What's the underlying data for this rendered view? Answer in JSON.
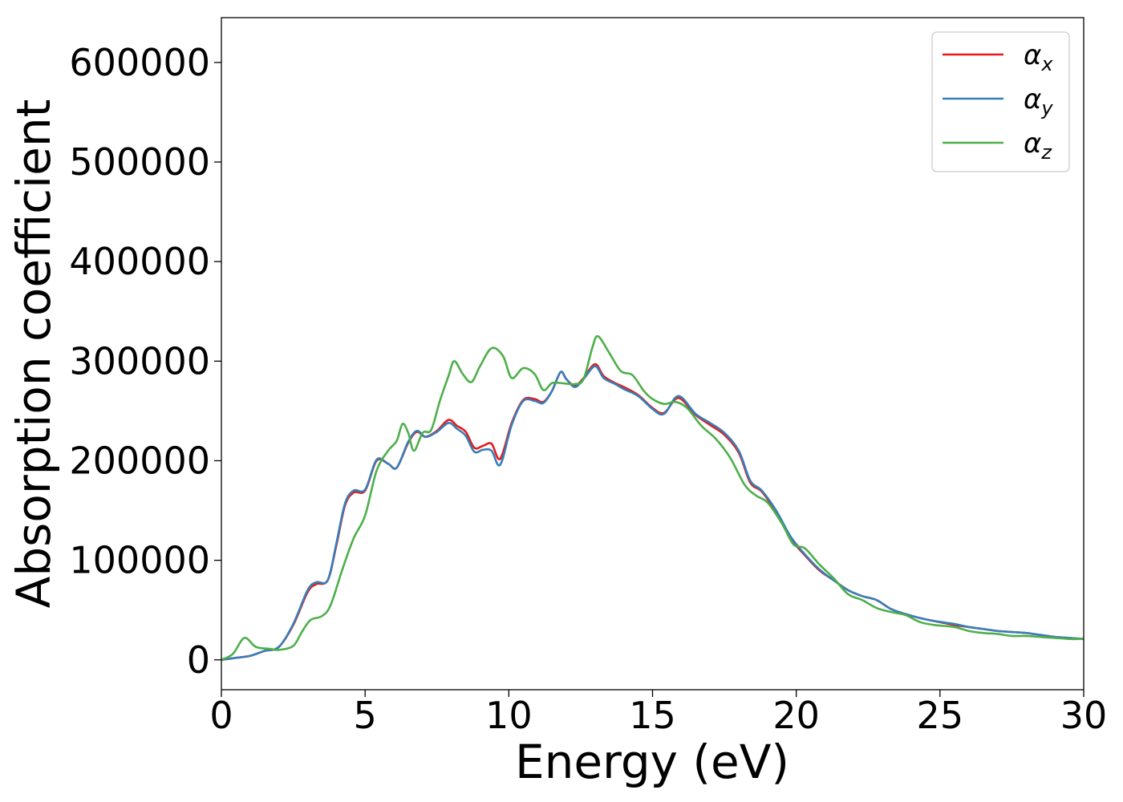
{
  "chart_data": {
    "type": "line",
    "xlabel": "Energy (eV)",
    "ylabel": "Absorption coefficient",
    "xlim": [
      0,
      30
    ],
    "ylim": [
      -30000,
      645000
    ],
    "grid": false,
    "legend_position": "top-right",
    "x_ticks": [
      "0",
      "5",
      "10",
      "15",
      "20",
      "25",
      "30"
    ],
    "y_ticks": [
      "0",
      "100000",
      "200000",
      "300000",
      "400000",
      "500000",
      "600000"
    ],
    "x_tick_values": [
      0,
      5,
      10,
      15,
      20,
      25,
      30
    ],
    "y_tick_values": [
      0,
      100000,
      200000,
      300000,
      400000,
      500000,
      600000
    ],
    "series": [
      {
        "name": "α_x",
        "symbol": "α",
        "subscript": "x",
        "color": "#e41a1c",
        "points": [
          [
            0,
            0
          ],
          [
            0.5,
            2000
          ],
          [
            1.0,
            4000
          ],
          [
            1.5,
            9000
          ],
          [
            2.0,
            13000
          ],
          [
            2.5,
            35000
          ],
          [
            3.0,
            68000
          ],
          [
            3.3,
            76000
          ],
          [
            3.7,
            80000
          ],
          [
            4.0,
            115000
          ],
          [
            4.3,
            155000
          ],
          [
            4.6,
            168000
          ],
          [
            5.0,
            170000
          ],
          [
            5.4,
            200000
          ],
          [
            5.8,
            197000
          ],
          [
            6.1,
            193000
          ],
          [
            6.5,
            218000
          ],
          [
            6.8,
            229000
          ],
          [
            7.1,
            224000
          ],
          [
            7.5,
            230000
          ],
          [
            7.9,
            241000
          ],
          [
            8.2,
            235000
          ],
          [
            8.5,
            229000
          ],
          [
            8.8,
            213000
          ],
          [
            9.1,
            215000
          ],
          [
            9.4,
            217000
          ],
          [
            9.7,
            202000
          ],
          [
            10.1,
            238000
          ],
          [
            10.5,
            261000
          ],
          [
            10.9,
            262000
          ],
          [
            11.2,
            259000
          ],
          [
            11.5,
            270000
          ],
          [
            11.8,
            289000
          ],
          [
            12.0,
            282000
          ],
          [
            12.3,
            275000
          ],
          [
            12.6,
            283000
          ],
          [
            13.0,
            297000
          ],
          [
            13.3,
            285000
          ],
          [
            13.7,
            278000
          ],
          [
            14.0,
            274000
          ],
          [
            14.5,
            266000
          ],
          [
            15.0,
            253000
          ],
          [
            15.4,
            248000
          ],
          [
            15.9,
            263000
          ],
          [
            16.5,
            246000
          ],
          [
            17.0,
            236000
          ],
          [
            17.5,
            226000
          ],
          [
            18.0,
            208000
          ],
          [
            18.4,
            178000
          ],
          [
            18.8,
            169000
          ],
          [
            19.3,
            148000
          ],
          [
            19.8,
            122000
          ],
          [
            20.3,
            105000
          ],
          [
            20.8,
            90000
          ],
          [
            21.3,
            80000
          ],
          [
            21.8,
            70000
          ],
          [
            22.3,
            64000
          ],
          [
            22.8,
            60000
          ],
          [
            23.3,
            51000
          ],
          [
            23.8,
            46000
          ],
          [
            24.3,
            42000
          ],
          [
            24.8,
            39000
          ],
          [
            25.5,
            35000
          ],
          [
            26.0,
            33000
          ],
          [
            26.5,
            31000
          ],
          [
            27.0,
            29000
          ],
          [
            27.5,
            28000
          ],
          [
            28.0,
            27000
          ],
          [
            28.5,
            25000
          ],
          [
            29.0,
            23000
          ],
          [
            29.5,
            22000
          ],
          [
            30.0,
            21000
          ]
        ]
      },
      {
        "name": "α_y",
        "symbol": "α",
        "subscript": "y",
        "color": "#377eb8",
        "points": [
          [
            0,
            0
          ],
          [
            0.5,
            2000
          ],
          [
            1.0,
            4000
          ],
          [
            1.5,
            9000
          ],
          [
            2.0,
            13000
          ],
          [
            2.5,
            36000
          ],
          [
            3.0,
            70000
          ],
          [
            3.3,
            78000
          ],
          [
            3.7,
            80000
          ],
          [
            4.0,
            117000
          ],
          [
            4.3,
            157000
          ],
          [
            4.6,
            170000
          ],
          [
            5.0,
            171000
          ],
          [
            5.4,
            201000
          ],
          [
            5.8,
            197000
          ],
          [
            6.1,
            193000
          ],
          [
            6.5,
            219000
          ],
          [
            6.8,
            230000
          ],
          [
            7.1,
            224000
          ],
          [
            7.5,
            229000
          ],
          [
            7.9,
            238000
          ],
          [
            8.2,
            232000
          ],
          [
            8.5,
            225000
          ],
          [
            8.8,
            209000
          ],
          [
            9.1,
            211000
          ],
          [
            9.4,
            210000
          ],
          [
            9.7,
            196000
          ],
          [
            10.1,
            236000
          ],
          [
            10.5,
            260000
          ],
          [
            10.9,
            260000
          ],
          [
            11.2,
            258000
          ],
          [
            11.5,
            270000
          ],
          [
            11.8,
            289000
          ],
          [
            12.0,
            282000
          ],
          [
            12.3,
            274000
          ],
          [
            12.6,
            282000
          ],
          [
            13.0,
            295000
          ],
          [
            13.3,
            283000
          ],
          [
            13.7,
            277000
          ],
          [
            14.0,
            272000
          ],
          [
            14.5,
            265000
          ],
          [
            15.0,
            252000
          ],
          [
            15.4,
            247000
          ],
          [
            15.9,
            265000
          ],
          [
            16.5,
            247000
          ],
          [
            17.0,
            238000
          ],
          [
            17.5,
            228000
          ],
          [
            18.0,
            210000
          ],
          [
            18.4,
            180000
          ],
          [
            18.8,
            170000
          ],
          [
            19.3,
            150000
          ],
          [
            19.8,
            124000
          ],
          [
            20.3,
            106000
          ],
          [
            20.8,
            91000
          ],
          [
            21.3,
            80000
          ],
          [
            21.8,
            70000
          ],
          [
            22.3,
            64000
          ],
          [
            22.8,
            60000
          ],
          [
            23.3,
            51000
          ],
          [
            23.8,
            46000
          ],
          [
            24.3,
            42000
          ],
          [
            24.8,
            39000
          ],
          [
            25.5,
            36000
          ],
          [
            26.0,
            33000
          ],
          [
            26.5,
            31000
          ],
          [
            27.0,
            29000
          ],
          [
            27.5,
            28000
          ],
          [
            28.0,
            27000
          ],
          [
            28.5,
            25000
          ],
          [
            29.0,
            23000
          ],
          [
            29.5,
            22000
          ],
          [
            30.0,
            21000
          ]
        ]
      },
      {
        "name": "α_z",
        "symbol": "α",
        "subscript": "z",
        "color": "#4daf4a",
        "points": [
          [
            0,
            0
          ],
          [
            0.4,
            6000
          ],
          [
            0.8,
            22000
          ],
          [
            1.2,
            13000
          ],
          [
            1.7,
            11000
          ],
          [
            2.0,
            10000
          ],
          [
            2.5,
            14000
          ],
          [
            2.8,
            28000
          ],
          [
            3.1,
            40000
          ],
          [
            3.5,
            44000
          ],
          [
            3.8,
            55000
          ],
          [
            4.2,
            90000
          ],
          [
            4.6,
            122000
          ],
          [
            5.0,
            145000
          ],
          [
            5.4,
            190000
          ],
          [
            5.8,
            210000
          ],
          [
            6.1,
            220000
          ],
          [
            6.3,
            237000
          ],
          [
            6.5,
            228000
          ],
          [
            6.7,
            210000
          ],
          [
            7.0,
            228000
          ],
          [
            7.3,
            231000
          ],
          [
            7.6,
            260000
          ],
          [
            7.9,
            285000
          ],
          [
            8.1,
            300000
          ],
          [
            8.4,
            287000
          ],
          [
            8.7,
            279000
          ],
          [
            9.0,
            295000
          ],
          [
            9.4,
            313000
          ],
          [
            9.8,
            305000
          ],
          [
            10.1,
            283000
          ],
          [
            10.5,
            293000
          ],
          [
            10.9,
            287000
          ],
          [
            11.2,
            271000
          ],
          [
            11.5,
            278000
          ],
          [
            11.8,
            278000
          ],
          [
            12.3,
            277000
          ],
          [
            12.6,
            282000
          ],
          [
            12.9,
            313000
          ],
          [
            13.1,
            325000
          ],
          [
            13.5,
            308000
          ],
          [
            13.9,
            290000
          ],
          [
            14.3,
            286000
          ],
          [
            14.7,
            270000
          ],
          [
            15.0,
            262000
          ],
          [
            15.4,
            257000
          ],
          [
            15.8,
            259000
          ],
          [
            16.2,
            253000
          ],
          [
            16.7,
            235000
          ],
          [
            17.2,
            222000
          ],
          [
            17.7,
            203000
          ],
          [
            18.2,
            176000
          ],
          [
            18.6,
            165000
          ],
          [
            19.0,
            158000
          ],
          [
            19.5,
            137000
          ],
          [
            19.9,
            116000
          ],
          [
            20.3,
            112000
          ],
          [
            20.8,
            96000
          ],
          [
            21.3,
            82000
          ],
          [
            21.8,
            66000
          ],
          [
            22.3,
            60000
          ],
          [
            22.8,
            52000
          ],
          [
            23.3,
            48000
          ],
          [
            23.8,
            45000
          ],
          [
            24.3,
            38000
          ],
          [
            24.8,
            35000
          ],
          [
            25.5,
            33000
          ],
          [
            26.0,
            29000
          ],
          [
            26.5,
            27000
          ],
          [
            27.0,
            26000
          ],
          [
            27.5,
            24000
          ],
          [
            28.0,
            24000
          ],
          [
            28.5,
            23000
          ],
          [
            29.0,
            22000
          ],
          [
            29.5,
            21000
          ],
          [
            30.0,
            21000
          ]
        ]
      }
    ]
  }
}
